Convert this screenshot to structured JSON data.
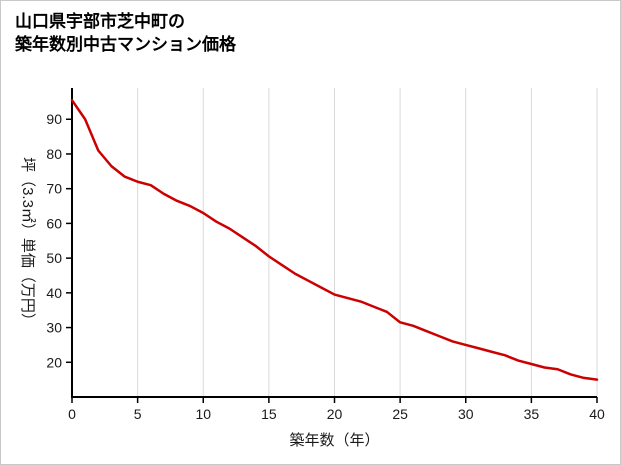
{
  "page": {
    "background": "#ffffff",
    "border_color": "#c9c9c9"
  },
  "chart_data": {
    "type": "line",
    "title_line1": "山口県宇部市芝中町の",
    "title_line2": "築年数別中古マンション価格",
    "xlabel": "築年数（年）",
    "ylabel": "坪（3.3㎡）単価（万円）",
    "x": [
      0,
      1,
      2,
      3,
      4,
      5,
      6,
      7,
      8,
      9,
      10,
      11,
      12,
      13,
      14,
      15,
      16,
      17,
      18,
      19,
      20,
      21,
      22,
      23,
      24,
      25,
      26,
      27,
      28,
      29,
      30,
      31,
      32,
      33,
      34,
      35,
      36,
      37,
      38,
      39,
      40
    ],
    "series": [
      {
        "color": "#cc0000",
        "values": [
          95.5,
          90,
          81,
          76.5,
          73.5,
          72,
          71,
          68.5,
          66.5,
          65,
          63,
          60.5,
          58.5,
          56,
          53.5,
          50.5,
          48,
          45.5,
          43.5,
          41.5,
          39.5,
          38.5,
          37.5,
          36,
          34.5,
          31.5,
          30.5,
          29,
          27.5,
          26,
          25,
          24,
          23,
          22,
          20.5,
          19.5,
          18.5,
          18,
          16.5,
          15.5,
          15
        ]
      }
    ],
    "xlim": [
      0,
      40
    ],
    "ylim": [
      10,
      99
    ],
    "xticks": [
      0,
      5,
      10,
      15,
      20,
      25,
      30,
      35,
      40
    ],
    "yticks": [
      20,
      30,
      40,
      50,
      60,
      70,
      80,
      90
    ],
    "grid": "vertical-only",
    "grid_color": "#d9d9d9",
    "axis_color": "#000000",
    "tick_label_color": "#1a1a1a",
    "legend": "none"
  }
}
